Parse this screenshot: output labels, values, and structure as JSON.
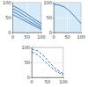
{
  "chart_data": [
    {
      "type": "line",
      "grid": true,
      "x": [
        0,
        20,
        40,
        60,
        80,
        100
      ],
      "xlim": [
        0,
        100
      ],
      "xticks": [
        0,
        50,
        100
      ],
      "ylim": [
        0,
        100
      ],
      "yticks": [
        0,
        50,
        100
      ],
      "series": [
        {
          "color": "#1f5fa8",
          "line_style": "solid",
          "values": [
            90,
            80,
            68,
            55,
            42,
            30
          ]
        },
        {
          "color": "#1f5fa8",
          "line_style": "solid",
          "values": [
            80,
            70,
            58,
            46,
            34,
            22
          ]
        },
        {
          "color": "#1f5fa8",
          "line_style": "solid",
          "values": [
            70,
            60,
            48,
            36,
            26,
            15
          ]
        },
        {
          "color": "#1f5fa8",
          "line_style": "solid",
          "values": [
            60,
            50,
            40,
            30,
            20,
            10
          ]
        }
      ]
    },
    {
      "type": "line",
      "grid": true,
      "x": [
        0,
        20,
        40,
        60,
        80,
        100
      ],
      "xlim": [
        0,
        100
      ],
      "xticks": [
        0,
        50,
        100
      ],
      "ylim": [
        0,
        100
      ],
      "yticks": [
        0,
        50,
        100
      ],
      "series": [
        {
          "color": "#1f5fa8",
          "line_style": "solid",
          "values": [
            95,
            92,
            85,
            70,
            50,
            30
          ]
        }
      ]
    },
    {
      "type": "line",
      "grid": true,
      "x": [
        0,
        20,
        40,
        60,
        80,
        100
      ],
      "xlim": [
        0,
        100
      ],
      "xticks": [
        0,
        50,
        100
      ],
      "ylim": [
        0,
        100
      ],
      "yticks": [
        0,
        50,
        100
      ],
      "series": [
        {
          "color": "#1f5fa8",
          "line_style": "dashed",
          "values": [
            95,
            88,
            70,
            45,
            25,
            12
          ]
        },
        {
          "color": "#1f5fa8",
          "line_style": "dashed",
          "values": [
            85,
            75,
            55,
            35,
            18,
            8
          ]
        }
      ]
    }
  ]
}
